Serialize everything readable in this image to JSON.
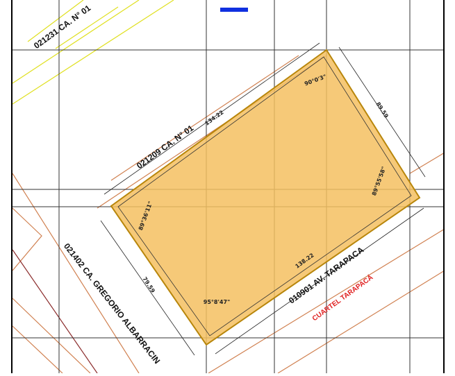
{
  "map": {
    "streets": [
      "021231 CA. N° 01",
      "021209 CA. N° 01",
      "021402 CA. GREGORIO ALBARRACIN",
      "010901 AV. TARAPACA"
    ],
    "place": "CUARTEL TARAPACÁ",
    "edges": [
      "134.22",
      "89.59",
      "79.59",
      "138.22"
    ],
    "angles": [
      "90°0'3\"",
      "89°55'58\"",
      "89°36'11\"",
      "95°8'47\""
    ]
  }
}
